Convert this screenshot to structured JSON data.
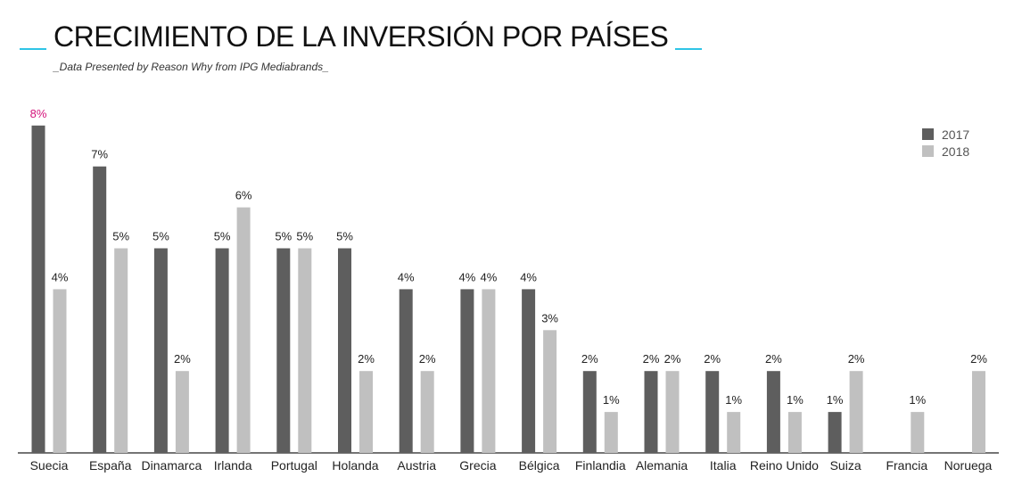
{
  "header": {
    "title": "CRECIMIENTO DE LA INVERSIÓN POR PAÍSES",
    "subtitle": "_Data Presented by Reason Why from IPG Mediabrands_"
  },
  "colors": {
    "accent": "#2ec4e6",
    "series_2017": "#5e5e5e",
    "series_2018": "#c0c0c0",
    "highlight_label": "#d4127a",
    "axis": "#222222"
  },
  "chart_data": {
    "type": "bar",
    "title": "CRECIMIENTO DE LA INVERSIÓN POR PAÍSES",
    "categories": [
      "Suecia",
      "España",
      "Dinamarca",
      "Irlanda",
      "Portugal",
      "Holanda",
      "Austria",
      "Grecia",
      "Bélgica",
      "Finlandia",
      "Alemania",
      "Italia",
      "Reino Unido",
      "Suiza",
      "Francia",
      "Noruega"
    ],
    "series": [
      {
        "name": "2017",
        "values": [
          8,
          7,
          5,
          5,
          5,
          5,
          4,
          4,
          4,
          2,
          2,
          2,
          2,
          1,
          null,
          null
        ]
      },
      {
        "name": "2018",
        "values": [
          4,
          5,
          2,
          6,
          5,
          2,
          2,
          4,
          3,
          1,
          2,
          1,
          1,
          2,
          1,
          2
        ]
      }
    ],
    "value_suffix": "%",
    "ylim": [
      0,
      8
    ],
    "grid": false,
    "legend_position": "top-right",
    "highlighted": {
      "series": "2017",
      "category": "Suecia"
    }
  }
}
